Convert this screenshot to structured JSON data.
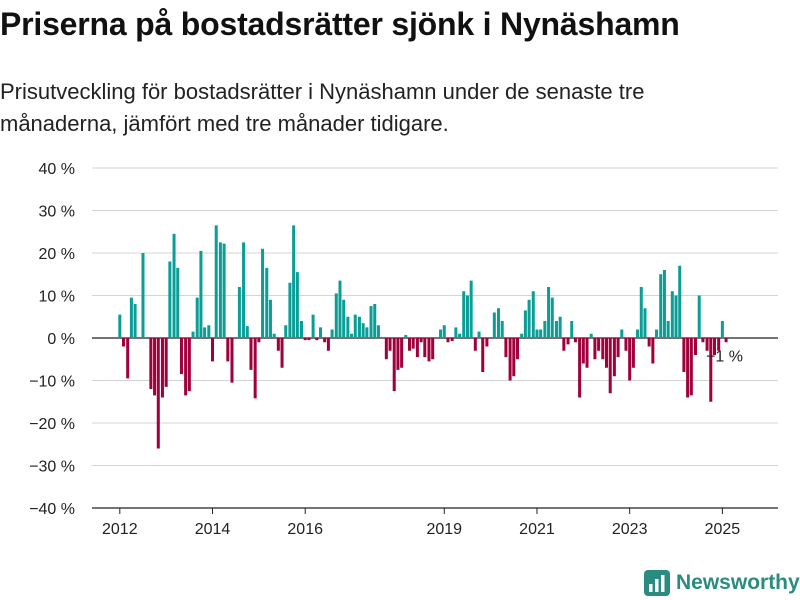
{
  "title": "Priserna på bostadsrätter sjönk i Nynäshamn",
  "subtitle": "Prisutveckling för bostadsrätter i Nynäshamn under de senaste tre månaderna, jämfört med tre månader tidigare.",
  "brand": {
    "name": "Newsworthy",
    "icon": "newsworthy-logo-icon",
    "color": "#2a8c80"
  },
  "colors": {
    "positive": "#0a9e96",
    "negative": "#a0003b",
    "grid": "#d4d4d4",
    "axis": "#222222"
  },
  "chart_data": {
    "type": "bar",
    "ylim": [
      -40,
      40
    ],
    "y_ticks": [
      {
        "value": 40,
        "label": "40 %"
      },
      {
        "value": 30,
        "label": "30 %"
      },
      {
        "value": 20,
        "label": "20 %"
      },
      {
        "value": 10,
        "label": "10 %"
      },
      {
        "value": 0,
        "label": "0 %"
      },
      {
        "value": -10,
        "label": "−10 %"
      },
      {
        "value": -20,
        "label": "−20 %"
      },
      {
        "value": -30,
        "label": "−30 %"
      },
      {
        "value": -40,
        "label": "−40 %"
      }
    ],
    "x_ticks": [
      {
        "value": 2012,
        "label": "2012"
      },
      {
        "value": 2014,
        "label": "2014"
      },
      {
        "value": 2016,
        "label": "2016"
      },
      {
        "value": 2019,
        "label": "2019"
      },
      {
        "value": 2021,
        "label": "2021"
      },
      {
        "value": 2023,
        "label": "2023"
      },
      {
        "value": 2025,
        "label": "2025"
      }
    ],
    "x_range": [
      2011.4,
      2026.2
    ],
    "annotation": {
      "text": "−1 %",
      "x": 2025.08,
      "value": -1
    },
    "data": [
      {
        "x": 2012.0,
        "v": 5.5
      },
      {
        "x": 2012.08,
        "v": -2
      },
      {
        "x": 2012.17,
        "v": -9.5
      },
      {
        "x": 2012.25,
        "v": 9.5
      },
      {
        "x": 2012.33,
        "v": 8
      },
      {
        "x": 2012.5,
        "v": 20
      },
      {
        "x": 2012.67,
        "v": -12
      },
      {
        "x": 2012.75,
        "v": -13.5
      },
      {
        "x": 2012.83,
        "v": -26
      },
      {
        "x": 2012.92,
        "v": -14
      },
      {
        "x": 2013.0,
        "v": -11.5
      },
      {
        "x": 2013.08,
        "v": 18
      },
      {
        "x": 2013.17,
        "v": 24.5
      },
      {
        "x": 2013.25,
        "v": 16.5
      },
      {
        "x": 2013.33,
        "v": -8.5
      },
      {
        "x": 2013.42,
        "v": -13.5
      },
      {
        "x": 2013.5,
        "v": -12.5
      },
      {
        "x": 2013.58,
        "v": 1.5
      },
      {
        "x": 2013.67,
        "v": 9.5
      },
      {
        "x": 2013.75,
        "v": 20.5
      },
      {
        "x": 2013.83,
        "v": 2.5
      },
      {
        "x": 2013.92,
        "v": 3
      },
      {
        "x": 2014.0,
        "v": -5.5
      },
      {
        "x": 2014.08,
        "v": 26.5
      },
      {
        "x": 2014.17,
        "v": 22.5
      },
      {
        "x": 2014.25,
        "v": 22.2
      },
      {
        "x": 2014.33,
        "v": -5.5
      },
      {
        "x": 2014.42,
        "v": -10.5
      },
      {
        "x": 2014.58,
        "v": 12
      },
      {
        "x": 2014.67,
        "v": 22.5
      },
      {
        "x": 2014.75,
        "v": 2.8
      },
      {
        "x": 2014.83,
        "v": -7.5
      },
      {
        "x": 2014.92,
        "v": -14.2
      },
      {
        "x": 2015.0,
        "v": -1
      },
      {
        "x": 2015.08,
        "v": 21
      },
      {
        "x": 2015.17,
        "v": 16.5
      },
      {
        "x": 2015.25,
        "v": 9
      },
      {
        "x": 2015.33,
        "v": 1
      },
      {
        "x": 2015.42,
        "v": -3
      },
      {
        "x": 2015.5,
        "v": -7
      },
      {
        "x": 2015.58,
        "v": 3
      },
      {
        "x": 2015.67,
        "v": 13
      },
      {
        "x": 2015.75,
        "v": 26.5
      },
      {
        "x": 2015.83,
        "v": 15.5
      },
      {
        "x": 2015.92,
        "v": 4
      },
      {
        "x": 2016.0,
        "v": -0.5
      },
      {
        "x": 2016.08,
        "v": -0.5
      },
      {
        "x": 2016.17,
        "v": 5.5
      },
      {
        "x": 2016.25,
        "v": -0.5
      },
      {
        "x": 2016.33,
        "v": 2.5
      },
      {
        "x": 2016.42,
        "v": -1
      },
      {
        "x": 2016.5,
        "v": -3
      },
      {
        "x": 2016.58,
        "v": 2
      },
      {
        "x": 2016.67,
        "v": 10.5
      },
      {
        "x": 2016.75,
        "v": 13.5
      },
      {
        "x": 2016.83,
        "v": 9
      },
      {
        "x": 2016.92,
        "v": 5
      },
      {
        "x": 2017.0,
        "v": 1
      },
      {
        "x": 2017.08,
        "v": 5.5
      },
      {
        "x": 2017.17,
        "v": 5
      },
      {
        "x": 2017.25,
        "v": 3.5
      },
      {
        "x": 2017.33,
        "v": 2.5
      },
      {
        "x": 2017.42,
        "v": 7.5
      },
      {
        "x": 2017.5,
        "v": 8
      },
      {
        "x": 2017.58,
        "v": 3
      },
      {
        "x": 2017.75,
        "v": -5
      },
      {
        "x": 2017.83,
        "v": -3
      },
      {
        "x": 2017.92,
        "v": -12.5
      },
      {
        "x": 2018.0,
        "v": -7.5
      },
      {
        "x": 2018.08,
        "v": -7
      },
      {
        "x": 2018.17,
        "v": 0.7
      },
      {
        "x": 2018.25,
        "v": -3
      },
      {
        "x": 2018.33,
        "v": -2.5
      },
      {
        "x": 2018.42,
        "v": -4.5
      },
      {
        "x": 2018.5,
        "v": -1
      },
      {
        "x": 2018.58,
        "v": -4.5
      },
      {
        "x": 2018.67,
        "v": -5.5
      },
      {
        "x": 2018.75,
        "v": -5
      },
      {
        "x": 2018.92,
        "v": 2
      },
      {
        "x": 2019.0,
        "v": 3
      },
      {
        "x": 2019.08,
        "v": -1
      },
      {
        "x": 2019.17,
        "v": -0.7
      },
      {
        "x": 2019.25,
        "v": 2.5
      },
      {
        "x": 2019.33,
        "v": 1
      },
      {
        "x": 2019.42,
        "v": 11
      },
      {
        "x": 2019.5,
        "v": 10
      },
      {
        "x": 2019.58,
        "v": 13.5
      },
      {
        "x": 2019.67,
        "v": -3
      },
      {
        "x": 2019.75,
        "v": 1.5
      },
      {
        "x": 2019.83,
        "v": -8
      },
      {
        "x": 2019.92,
        "v": -2
      },
      {
        "x": 2020.08,
        "v": 6
      },
      {
        "x": 2020.17,
        "v": 7
      },
      {
        "x": 2020.25,
        "v": 4
      },
      {
        "x": 2020.33,
        "v": -4.5
      },
      {
        "x": 2020.42,
        "v": -10
      },
      {
        "x": 2020.5,
        "v": -9
      },
      {
        "x": 2020.58,
        "v": -5
      },
      {
        "x": 2020.67,
        "v": 1
      },
      {
        "x": 2020.75,
        "v": 6.5
      },
      {
        "x": 2020.83,
        "v": 9
      },
      {
        "x": 2020.92,
        "v": 11
      },
      {
        "x": 2021.0,
        "v": 2
      },
      {
        "x": 2021.08,
        "v": 2
      },
      {
        "x": 2021.17,
        "v": 4
      },
      {
        "x": 2021.25,
        "v": 12
      },
      {
        "x": 2021.33,
        "v": 9.5
      },
      {
        "x": 2021.42,
        "v": 4
      },
      {
        "x": 2021.5,
        "v": 5
      },
      {
        "x": 2021.58,
        "v": -3
      },
      {
        "x": 2021.67,
        "v": -1.5
      },
      {
        "x": 2021.75,
        "v": 4
      },
      {
        "x": 2021.83,
        "v": -1
      },
      {
        "x": 2021.92,
        "v": -14
      },
      {
        "x": 2022.0,
        "v": -6
      },
      {
        "x": 2022.08,
        "v": -7
      },
      {
        "x": 2022.17,
        "v": 1
      },
      {
        "x": 2022.25,
        "v": -5
      },
      {
        "x": 2022.33,
        "v": -3
      },
      {
        "x": 2022.42,
        "v": -5
      },
      {
        "x": 2022.5,
        "v": -7
      },
      {
        "x": 2022.58,
        "v": -13
      },
      {
        "x": 2022.67,
        "v": -9
      },
      {
        "x": 2022.75,
        "v": -4.5
      },
      {
        "x": 2022.83,
        "v": 2
      },
      {
        "x": 2022.92,
        "v": -3
      },
      {
        "x": 2023.0,
        "v": -10
      },
      {
        "x": 2023.08,
        "v": -7
      },
      {
        "x": 2023.17,
        "v": 2
      },
      {
        "x": 2023.25,
        "v": 12
      },
      {
        "x": 2023.33,
        "v": 7
      },
      {
        "x": 2023.42,
        "v": -2
      },
      {
        "x": 2023.5,
        "v": -6
      },
      {
        "x": 2023.58,
        "v": 2
      },
      {
        "x": 2023.67,
        "v": 15
      },
      {
        "x": 2023.75,
        "v": 16
      },
      {
        "x": 2023.83,
        "v": 4
      },
      {
        "x": 2023.92,
        "v": 11
      },
      {
        "x": 2024.0,
        "v": 10
      },
      {
        "x": 2024.08,
        "v": 17
      },
      {
        "x": 2024.17,
        "v": -8
      },
      {
        "x": 2024.25,
        "v": -14
      },
      {
        "x": 2024.33,
        "v": -13.5
      },
      {
        "x": 2024.42,
        "v": -4
      },
      {
        "x": 2024.5,
        "v": 10
      },
      {
        "x": 2024.58,
        "v": -1
      },
      {
        "x": 2024.67,
        "v": -3
      },
      {
        "x": 2024.75,
        "v": -15
      },
      {
        "x": 2024.83,
        "v": -4
      },
      {
        "x": 2024.92,
        "v": -3
      },
      {
        "x": 2025.0,
        "v": 4
      },
      {
        "x": 2025.08,
        "v": -1
      }
    ]
  }
}
